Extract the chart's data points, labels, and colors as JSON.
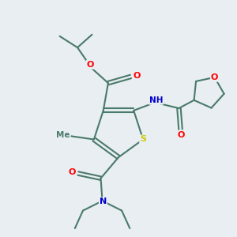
{
  "bg_color": "#e8eef2",
  "bond_color": "#4a7a6a",
  "bond_width": 1.5,
  "atom_colors": {
    "O": "#ff0000",
    "N": "#0000cc",
    "S": "#cccc00",
    "H": "#888888",
    "C": "#4a7a6a"
  },
  "font_size": 8,
  "fig_size": [
    3.0,
    3.0
  ],
  "dpi": 100
}
